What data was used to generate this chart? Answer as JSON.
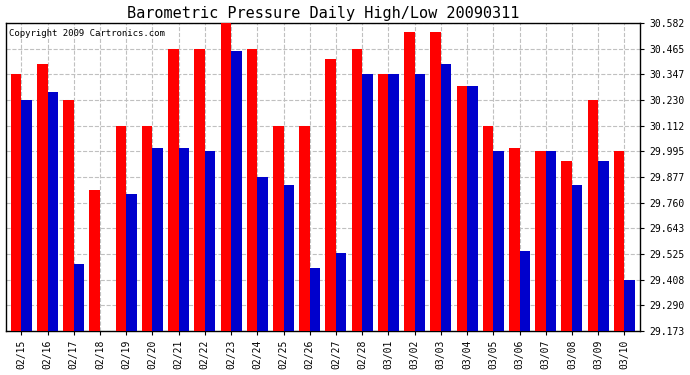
{
  "title": "Barometric Pressure Daily High/Low 20090311",
  "copyright": "Copyright 2009 Cartronics.com",
  "dates": [
    "02/15",
    "02/16",
    "02/17",
    "02/18",
    "02/19",
    "02/20",
    "02/21",
    "02/22",
    "02/23",
    "02/24",
    "02/25",
    "02/26",
    "02/27",
    "02/28",
    "03/01",
    "03/02",
    "03/03",
    "03/04",
    "03/05",
    "03/06",
    "03/07",
    "03/08",
    "03/09",
    "03/10"
  ],
  "highs": [
    30.347,
    30.395,
    30.23,
    29.82,
    30.112,
    30.112,
    30.465,
    30.465,
    30.582,
    30.465,
    30.112,
    30.112,
    30.42,
    30.465,
    30.347,
    30.54,
    30.54,
    30.295,
    30.112,
    30.01,
    29.995,
    29.95,
    30.23,
    29.995
  ],
  "lows": [
    30.23,
    30.265,
    29.48,
    29.173,
    29.8,
    30.01,
    30.01,
    29.995,
    30.455,
    29.877,
    29.843,
    29.46,
    29.53,
    30.347,
    30.347,
    30.347,
    30.395,
    30.295,
    29.995,
    29.54,
    29.995,
    29.843,
    29.95,
    29.408
  ],
  "bar_color_high": "#ff0000",
  "bar_color_low": "#0000cc",
  "bg_color": "#ffffff",
  "grid_color": "#c0c0c0",
  "yticks": [
    29.173,
    29.29,
    29.408,
    29.525,
    29.643,
    29.76,
    29.877,
    29.995,
    30.112,
    30.23,
    30.347,
    30.465,
    30.582
  ],
  "ymin": 29.173,
  "ymax": 30.582,
  "bar_width": 0.4,
  "title_fontsize": 11,
  "tick_fontsize": 7,
  "copyright_fontsize": 6.5
}
